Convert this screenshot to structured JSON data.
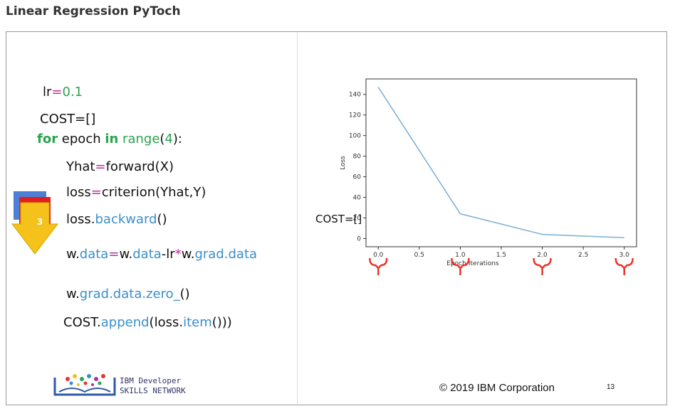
{
  "page": {
    "title": "Linear Regression PyToch"
  },
  "slide": {
    "code": {
      "lr_name": "lr",
      "lr_eq": "=",
      "lr_value": "0.1",
      "cost_init": "COST=[]",
      "for_kw": "for",
      "for_var": " epoch ",
      "in_kw": "in",
      "range_fn": " range",
      "range_open": "(",
      "range_arg": "4",
      "range_close": "):",
      "yhat_a": "Yhat",
      "yhat_eq": "=",
      "yhat_b": "forward(X)",
      "loss_a": "loss",
      "loss_eq": "=",
      "loss_b": "criterion(Yhat,Y)",
      "backward_a": "loss.",
      "backward_b": "backward",
      "backward_c": "()",
      "update_a": "w.",
      "update_b": "data",
      "update_c": "=",
      "update_d": "w.",
      "update_e": "data",
      "update_f": "-lr",
      "update_g": "*",
      "update_h": "w.",
      "update_i": "grad.data",
      "zero_a": "w.",
      "zero_b": "grad.data.zero_",
      "zero_c": "()",
      "append_a": "COST.",
      "append_b": "append",
      "append_c": "(loss.",
      "append_d": "item",
      "append_e": "()))"
    },
    "animation_badge": "3",
    "cost_annotation": "COST=[]",
    "logo": {
      "line1": "IBM Developer",
      "line2": "SKILLS NETWORK"
    },
    "copyright": "© 2019 IBM Corporation",
    "slide_number": "13",
    "colors": {
      "keyword": "#2aa44f",
      "method": "#3a8fc8",
      "operator": "#b0309b",
      "line": "#7fb2d6",
      "brace": "#e8352a"
    }
  },
  "chart_data": {
    "type": "line",
    "x": [
      0.0,
      1.0,
      2.0,
      3.0
    ],
    "y": [
      147,
      24,
      4,
      0.8
    ],
    "xlabel": "Epoch/Iterations",
    "ylabel": "Loss",
    "xlim": [
      -0.15,
      3.15
    ],
    "ylim": [
      -8,
      155
    ],
    "xticks": [
      "0.0",
      "0.5",
      "1.0",
      "1.5",
      "2.0",
      "2.5",
      "3.0"
    ],
    "yticks": [
      "0",
      "20",
      "40",
      "60",
      "80",
      "100",
      "120",
      "140"
    ],
    "grid": false,
    "highlighted_x": [
      0.0,
      1.0,
      2.0,
      3.0
    ]
  }
}
